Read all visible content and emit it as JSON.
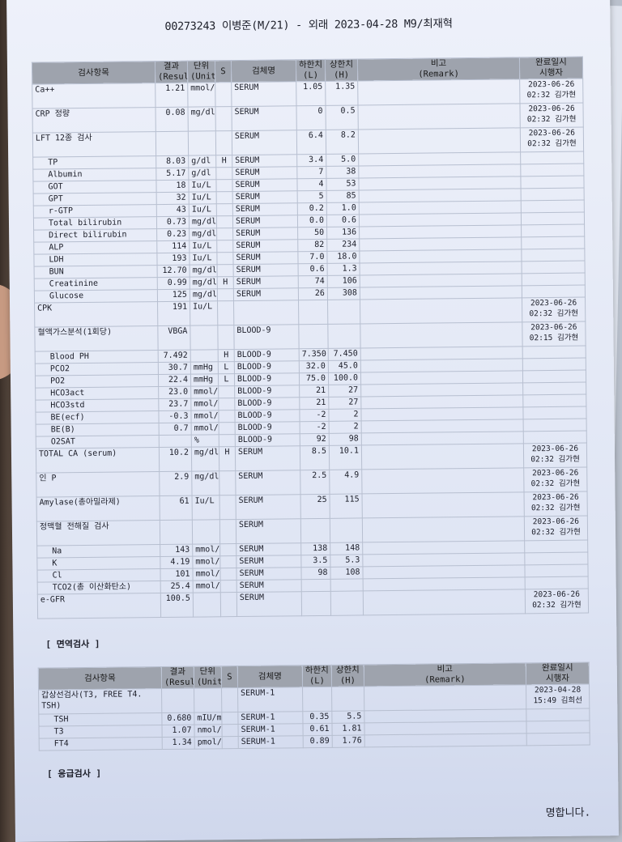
{
  "header": {
    "title": "00273243 이병준(M/21) - 외래 2023-04-28 M9/최재혁"
  },
  "columns": {
    "item": "검사항목",
    "result": "결과\n(Result)",
    "unit": "단위\n(Unit)",
    "s": "S",
    "specimen": "검체명",
    "low": "하한치\n(L)",
    "high": "상한치\n(H)",
    "remark": "비고\n(Remark)",
    "done": "완료일시\n시행자"
  },
  "main_rows": [
    {
      "item": "Ca++",
      "result": "1.21",
      "unit": "mmol/L",
      "flag": "",
      "spec": "SERUM",
      "low": "1.05",
      "high": "1.35",
      "done": "2023-06-26\n02:32 김가현",
      "sub": false
    },
    {
      "item": "CRP 정량",
      "result": "0.08",
      "unit": "mg/dl",
      "flag": "",
      "spec": "SERUM",
      "low": "0",
      "high": "0.5",
      "done": "2023-06-26\n02:32 김가현",
      "sub": false
    },
    {
      "item": "LFT 12종 검사",
      "result": "",
      "unit": "",
      "flag": "",
      "spec": "SERUM",
      "low": "6.4",
      "high": "8.2",
      "done": "2023-06-26\n02:32 김가현",
      "sub": false
    },
    {
      "item": "TP",
      "result": "8.03",
      "unit": "g/dl",
      "flag": "H",
      "spec": "SERUM",
      "low": "3.4",
      "high": "5.0",
      "done": "",
      "sub": true
    },
    {
      "item": "Albumin",
      "result": "5.17",
      "unit": "g/dl",
      "flag": "",
      "spec": "SERUM",
      "low": "7",
      "high": "38",
      "done": "",
      "sub": true
    },
    {
      "item": "GOT",
      "result": "18",
      "unit": "Iu/L",
      "flag": "",
      "spec": "SERUM",
      "low": "4",
      "high": "53",
      "done": "",
      "sub": true
    },
    {
      "item": "GPT",
      "result": "32",
      "unit": "Iu/L",
      "flag": "",
      "spec": "SERUM",
      "low": "5",
      "high": "85",
      "done": "",
      "sub": true
    },
    {
      "item": "r-GTP",
      "result": "43",
      "unit": "Iu/L",
      "flag": "",
      "spec": "SERUM",
      "low": "0.2",
      "high": "1.0",
      "done": "",
      "sub": true
    },
    {
      "item": "Total bilirubin",
      "result": "0.73",
      "unit": "mg/dl",
      "flag": "",
      "spec": "SERUM",
      "low": "0.0",
      "high": "0.6",
      "done": "",
      "sub": true
    },
    {
      "item": "Direct bilirubin",
      "result": "0.23",
      "unit": "mg/dl",
      "flag": "",
      "spec": "SERUM",
      "low": "50",
      "high": "136",
      "done": "",
      "sub": true
    },
    {
      "item": "ALP",
      "result": "114",
      "unit": "Iu/L",
      "flag": "",
      "spec": "SERUM",
      "low": "82",
      "high": "234",
      "done": "",
      "sub": true
    },
    {
      "item": "LDH",
      "result": "193",
      "unit": "Iu/L",
      "flag": "",
      "spec": "SERUM",
      "low": "7.0",
      "high": "18.0",
      "done": "",
      "sub": true
    },
    {
      "item": "BUN",
      "result": "12.70",
      "unit": "mg/dl",
      "flag": "",
      "spec": "SERUM",
      "low": "0.6",
      "high": "1.3",
      "done": "",
      "sub": true
    },
    {
      "item": "Creatinine",
      "result": "0.99",
      "unit": "mg/dl",
      "flag": "H",
      "spec": "SERUM",
      "low": "74",
      "high": "106",
      "done": "",
      "sub": true
    },
    {
      "item": "Glucose",
      "result": "125",
      "unit": "mg/dl",
      "flag": "",
      "spec": "SERUM",
      "low": "26",
      "high": "308",
      "done": "",
      "sub": true
    },
    {
      "item": "CPK",
      "result": "191",
      "unit": "Iu/L",
      "flag": "",
      "spec": "",
      "low": "",
      "high": "",
      "done": "2023-06-26\n02:32 김가현",
      "sub": false
    },
    {
      "item": "혈액가스분석(1회당)",
      "result": "VBGA",
      "unit": "",
      "flag": "",
      "spec": "BLOOD-9",
      "low": "",
      "high": "",
      "done": "2023-06-26\n02:15 김가현",
      "sub": false
    },
    {
      "item": "Blood PH",
      "result": "7.492",
      "unit": "",
      "flag": "H",
      "spec": "BLOOD-9",
      "low": "7.350",
      "high": "7.450",
      "done": "",
      "sub": true
    },
    {
      "item": "PCO2",
      "result": "30.7",
      "unit": "mmHg",
      "flag": "L",
      "spec": "BLOOD-9",
      "low": "32.0",
      "high": "45.0",
      "done": "",
      "sub": true
    },
    {
      "item": "PO2",
      "result": "22.4",
      "unit": "mmHg",
      "flag": "L",
      "spec": "BLOOD-9",
      "low": "75.0",
      "high": "100.0",
      "done": "",
      "sub": true
    },
    {
      "item": "HCO3act",
      "result": "23.0",
      "unit": "mmol/L",
      "flag": "",
      "spec": "BLOOD-9",
      "low": "21",
      "high": "27",
      "done": "",
      "sub": true
    },
    {
      "item": "HCO3std",
      "result": "23.7",
      "unit": "mmol/L",
      "flag": "",
      "spec": "BLOOD-9",
      "low": "21",
      "high": "27",
      "done": "",
      "sub": true
    },
    {
      "item": "BE(ecf)",
      "result": "-0.3",
      "unit": "mmol/L",
      "flag": "",
      "spec": "BLOOD-9",
      "low": "-2",
      "high": "2",
      "done": "",
      "sub": true
    },
    {
      "item": "BE(B)",
      "result": "0.7",
      "unit": "mmol/L",
      "flag": "",
      "spec": "BLOOD-9",
      "low": "-2",
      "high": "2",
      "done": "",
      "sub": true
    },
    {
      "item": "O2SAT",
      "result": "",
      "unit": "%",
      "flag": "",
      "spec": "BLOOD-9",
      "low": "92",
      "high": "98",
      "done": "",
      "sub": true
    },
    {
      "item": "TOTAL CA (serum)",
      "result": "10.2",
      "unit": "mg/dl",
      "flag": "H",
      "spec": "SERUM",
      "low": "8.5",
      "high": "10.1",
      "done": "2023-06-26\n02:32 김가현",
      "sub": false
    },
    {
      "item": "인 P",
      "result": "2.9",
      "unit": "mg/dl",
      "flag": "",
      "spec": "SERUM",
      "low": "2.5",
      "high": "4.9",
      "done": "2023-06-26\n02:32 김가현",
      "sub": false
    },
    {
      "item": "Amylase(총아밀라제)",
      "result": "61",
      "unit": "Iu/L",
      "flag": "",
      "spec": "SERUM",
      "low": "25",
      "high": "115",
      "done": "2023-06-26\n02:32 김가현",
      "sub": false
    },
    {
      "item": "정맥혈 전해질 검사",
      "result": "",
      "unit": "",
      "flag": "",
      "spec": "SERUM",
      "low": "",
      "high": "",
      "done": "2023-06-26\n02:32 김가현",
      "sub": false
    },
    {
      "item": "Na",
      "result": "143",
      "unit": "mmol/L",
      "flag": "",
      "spec": "SERUM",
      "low": "138",
      "high": "148",
      "done": "",
      "sub": true
    },
    {
      "item": "K",
      "result": "4.19",
      "unit": "mmol/L",
      "flag": "",
      "spec": "SERUM",
      "low": "3.5",
      "high": "5.3",
      "done": "",
      "sub": true
    },
    {
      "item": "Cl",
      "result": "101",
      "unit": "mmol/L",
      "flag": "",
      "spec": "SERUM",
      "low": "98",
      "high": "108",
      "done": "",
      "sub": true
    },
    {
      "item": "TCO2(총 이산화탄소)",
      "result": "25.4",
      "unit": "mmol/L",
      "flag": "",
      "spec": "SERUM",
      "low": "",
      "high": "",
      "done": "",
      "sub": true
    },
    {
      "item": "e-GFR",
      "result": "100.5",
      "unit": "",
      "flag": "",
      "spec": "SERUM",
      "low": "",
      "high": "",
      "done": "2023-06-26\n02:32 김가현",
      "sub": false
    }
  ],
  "sections": {
    "immune": "[ 면역검사 ]",
    "emergency": "[ 응급검사 ]"
  },
  "immune_rows": [
    {
      "item": "갑상선검사(T3, FREE T4.\nTSH)",
      "result": "",
      "unit": "",
      "flag": "",
      "spec": "SERUM-1",
      "low": "",
      "high": "",
      "done": "2023-04-28\n15:49 김희선",
      "sub": false
    },
    {
      "item": "TSH",
      "result": "0.680",
      "unit": "mIU/mL",
      "flag": "",
      "spec": "SERUM-1",
      "low": "0.35",
      "high": "5.5",
      "done": "",
      "sub": true
    },
    {
      "item": "T3",
      "result": "1.07",
      "unit": "nmol/L",
      "flag": "",
      "spec": "SERUM-1",
      "low": "0.61",
      "high": "1.81",
      "done": "",
      "sub": true
    },
    {
      "item": "FT4",
      "result": "1.34",
      "unit": "pmol/L",
      "flag": "",
      "spec": "SERUM-1",
      "low": "0.89",
      "high": "1.76",
      "done": "",
      "sub": true
    }
  ],
  "footer": {
    "text": "명합니다."
  }
}
